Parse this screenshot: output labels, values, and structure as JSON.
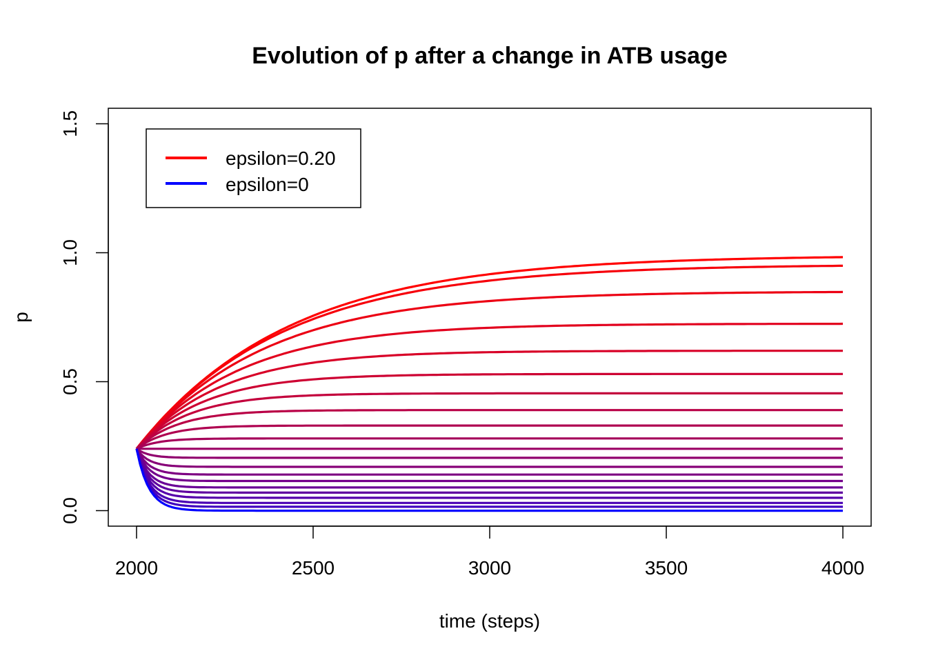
{
  "chart_data": {
    "type": "line",
    "title": "Evolution of p after a change in ATB usage",
    "xlabel": "time (steps)",
    "ylabel": "p",
    "xlim": [
      1920,
      4080
    ],
    "ylim": [
      -0.06,
      1.56
    ],
    "x_ticks": [
      "2000",
      "2500",
      "3000",
      "3500",
      "4000"
    ],
    "y_ticks": [
      "0.0",
      "0.5",
      "1.0",
      "1.5"
    ],
    "grid": false,
    "legend": {
      "position": "top-left",
      "entries": [
        {
          "label": "epsilon=0.20",
          "color": "#ff0000"
        },
        {
          "label": "epsilon=0",
          "color": "#0000ff"
        }
      ]
    },
    "x_start": 2000,
    "x_end": 4000,
    "p_start": 0.24,
    "series": [
      {
        "final": 0.99,
        "color": "#ff0000"
      },
      {
        "final": 0.955,
        "color": "#f6000a"
      },
      {
        "final": 0.85,
        "color": "#ec0013"
      },
      {
        "final": 0.725,
        "color": "#e2001d"
      },
      {
        "final": 0.62,
        "color": "#d80027"
      },
      {
        "final": 0.53,
        "color": "#cd0032"
      },
      {
        "final": 0.455,
        "color": "#c3003c"
      },
      {
        "final": 0.39,
        "color": "#b90046"
      },
      {
        "final": 0.33,
        "color": "#af0050"
      },
      {
        "final": 0.28,
        "color": "#a5005a"
      },
      {
        "final": 0.24,
        "color": "#9b0064"
      },
      {
        "final": 0.205,
        "color": "#91006e"
      },
      {
        "final": 0.17,
        "color": "#870078"
      },
      {
        "final": 0.14,
        "color": "#7d0082"
      },
      {
        "final": 0.115,
        "color": "#73008c"
      },
      {
        "final": 0.09,
        "color": "#690096"
      },
      {
        "final": 0.07,
        "color": "#5f00a0"
      },
      {
        "final": 0.05,
        "color": "#5500aa"
      },
      {
        "final": 0.03,
        "color": "#4a00b5"
      },
      {
        "final": 0.015,
        "color": "#4000bf"
      },
      {
        "final": 0.0,
        "color": "#0000ff"
      }
    ]
  }
}
